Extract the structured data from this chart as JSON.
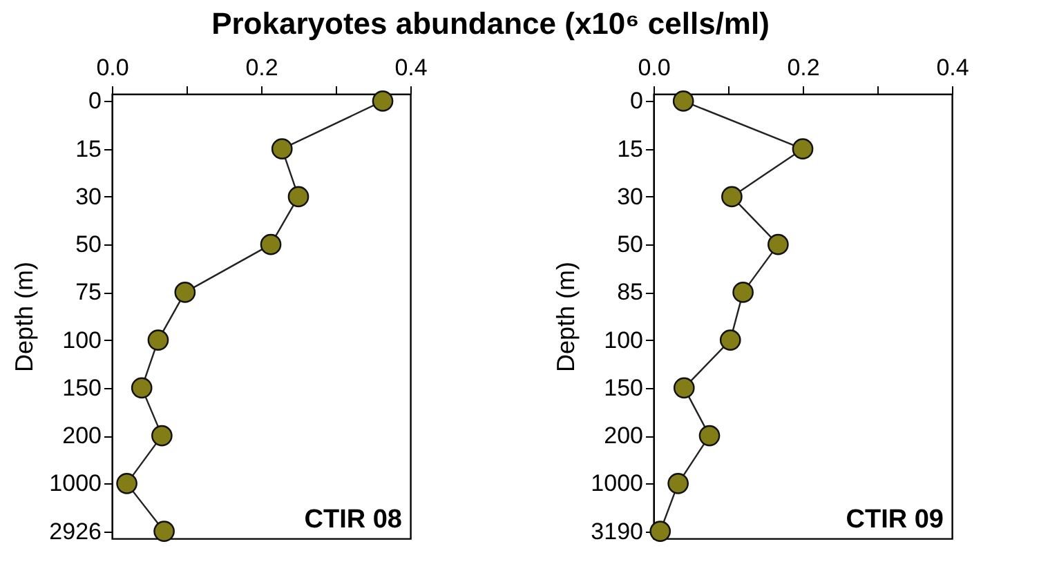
{
  "chart_data": [
    {
      "type": "line",
      "orientation": "horizontal",
      "title": "Prokaryotes abundance (x10⁶ cells/ml)",
      "ylabel": "Depth (m)",
      "categories": [
        "0",
        "15",
        "30",
        "50",
        "75",
        "100",
        "150",
        "200",
        "1000",
        "2926"
      ],
      "series": [
        {
          "color": "#827d16",
          "values": [
            0.363,
            0.228,
            0.25,
            0.213,
            0.098,
            0.062,
            0.04,
            0.067,
            0.02,
            0.07
          ]
        }
      ],
      "xlim": [
        0,
        0.4
      ],
      "xticks": [
        {
          "value": 0,
          "label": "0.0"
        },
        {
          "value": 0.1,
          "label": null
        },
        {
          "value": 0.2,
          "label": "0.2"
        },
        {
          "value": 0.3,
          "label": null
        },
        {
          "value": 0.4,
          "label": "0.4"
        }
      ],
      "marker": "circle",
      "line_style": "solid",
      "grid": false,
      "annotations": [
        "CTIR 08"
      ]
    },
    {
      "type": "line",
      "orientation": "horizontal",
      "ylabel": "Depth (m)",
      "categories": [
        "0",
        "15",
        "30",
        "50",
        "85",
        "100",
        "150",
        "200",
        "1000",
        "3190"
      ],
      "series": [
        {
          "color": "#827d16",
          "values": [
            0.04,
            0.2,
            0.105,
            0.167,
            0.12,
            0.103,
            0.041,
            0.075,
            0.033,
            0.009
          ]
        }
      ],
      "xlim": [
        0,
        0.4
      ],
      "xticks": [
        {
          "value": 0,
          "label": "0.0"
        },
        {
          "value": 0.1,
          "label": null
        },
        {
          "value": 0.2,
          "label": "0.2"
        },
        {
          "value": 0.3,
          "label": null
        },
        {
          "value": 0.4,
          "label": "0.4"
        }
      ],
      "marker": "circle",
      "line_style": "solid",
      "grid": false,
      "annotations": [
        "CTIR 09"
      ]
    }
  ]
}
